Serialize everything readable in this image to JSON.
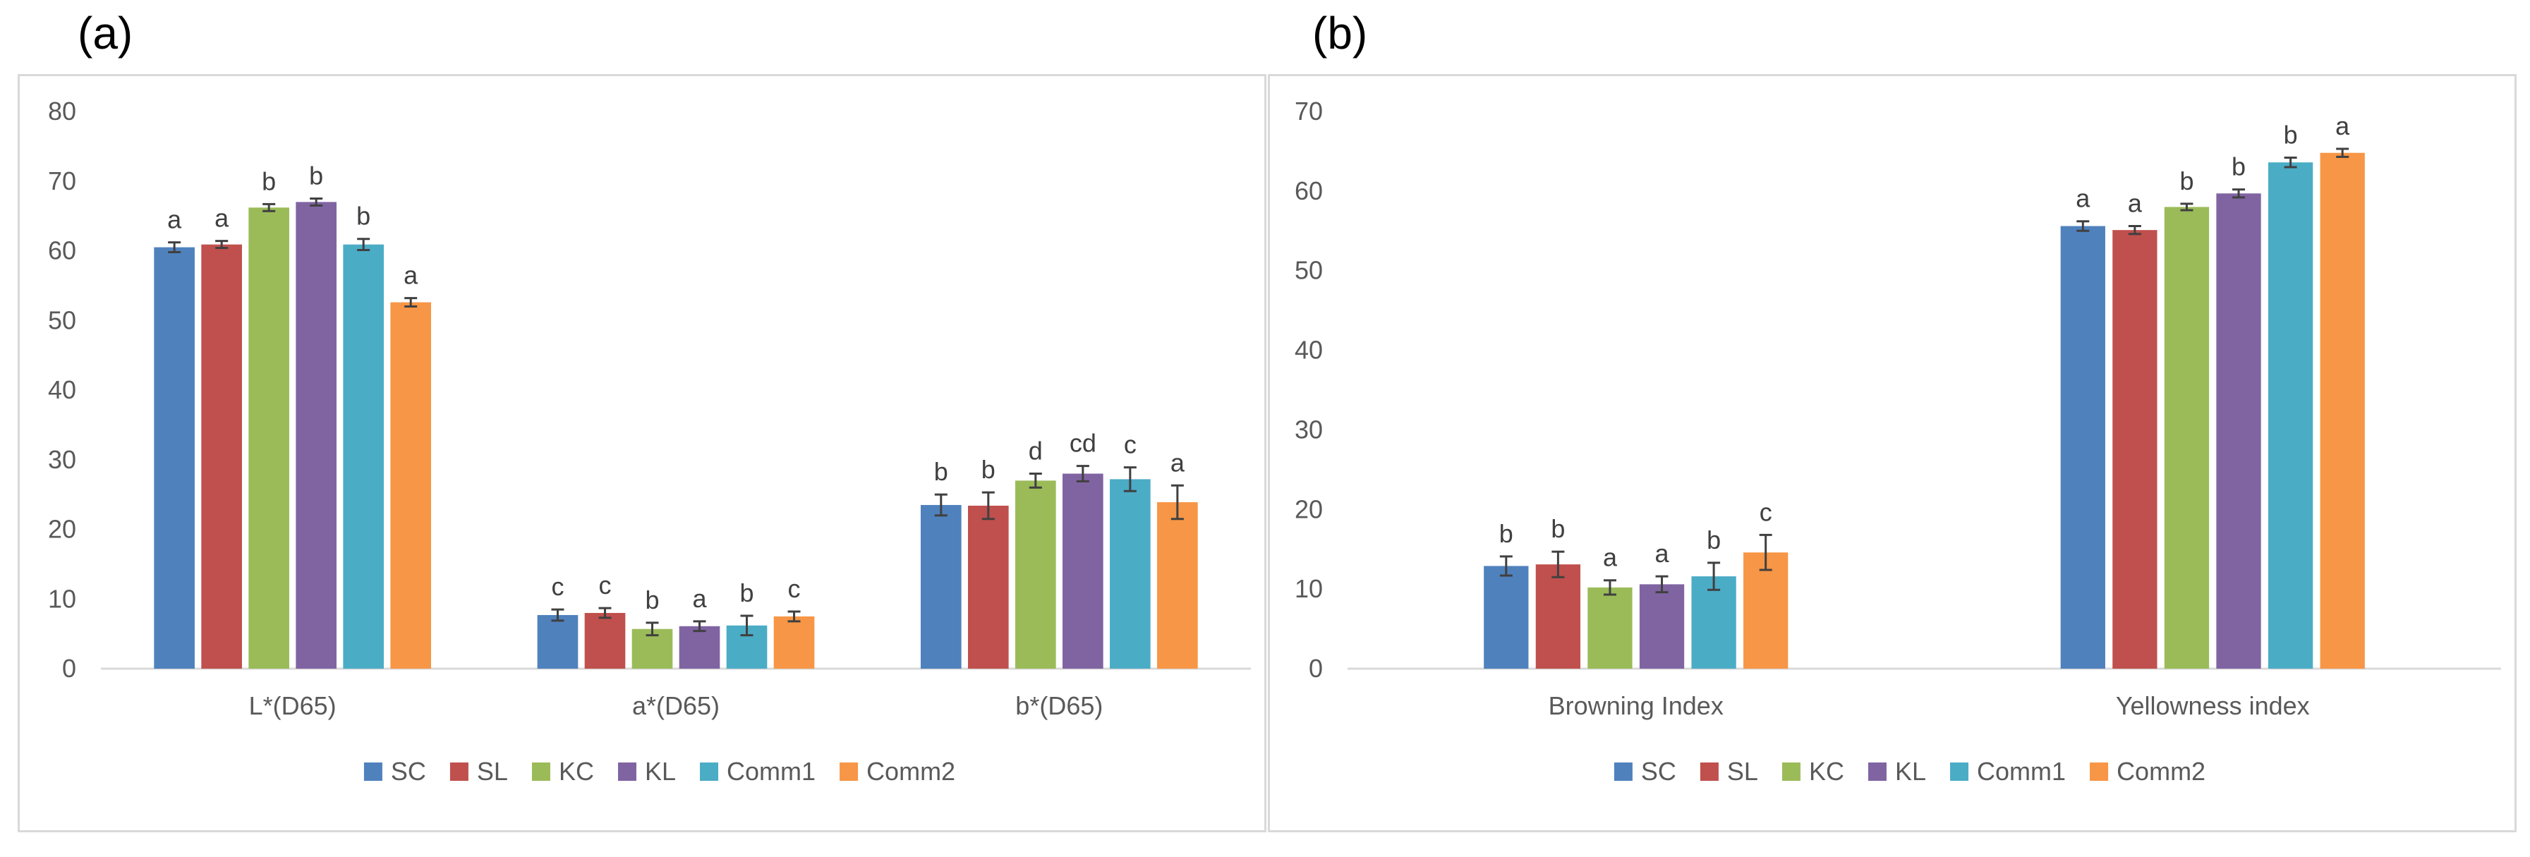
{
  "panels": {
    "a": "(a)",
    "b": "(b)"
  },
  "colors": {
    "SC": "#4f81bd",
    "SL": "#c0504d",
    "KC": "#9bbb59",
    "KL": "#8064a2",
    "Comm1": "#4bacc6",
    "Comm2": "#f79646"
  },
  "chart_data": [
    {
      "type": "bar",
      "panel": "(a)",
      "categories": [
        "L*(D65)",
        "a*(D65)",
        "b*(D65)"
      ],
      "ylim": [
        0,
        80
      ],
      "yticks": [
        0,
        10,
        20,
        30,
        40,
        50,
        60,
        70,
        80
      ],
      "grid": false,
      "legend_position": "bottom",
      "series": [
        {
          "name": "SC",
          "values": [
            60.5,
            7.7,
            23.5
          ],
          "errors": [
            0.7,
            0.8,
            1.5
          ],
          "letters": [
            "a",
            "c",
            "b"
          ]
        },
        {
          "name": "SL",
          "values": [
            60.9,
            8.0,
            23.4
          ],
          "errors": [
            0.5,
            0.7,
            1.9
          ],
          "letters": [
            "a",
            "c",
            "b"
          ]
        },
        {
          "name": "KC",
          "values": [
            66.2,
            5.7,
            27.0
          ],
          "errors": [
            0.5,
            0.9,
            1.0
          ],
          "letters": [
            "b",
            "b",
            "d"
          ]
        },
        {
          "name": "KL",
          "values": [
            67.0,
            6.1,
            28.0
          ],
          "errors": [
            0.5,
            0.7,
            1.1
          ],
          "letters": [
            "b",
            "a",
            "cd"
          ]
        },
        {
          "name": "Comm1",
          "values": [
            60.9,
            6.2,
            27.2
          ],
          "errors": [
            0.8,
            1.4,
            1.7
          ],
          "letters": [
            "b",
            "b",
            "c"
          ]
        },
        {
          "name": "Comm2",
          "values": [
            52.6,
            7.5,
            23.9
          ],
          "errors": [
            0.6,
            0.7,
            2.4
          ],
          "letters": [
            "a",
            "c",
            "a"
          ]
        }
      ]
    },
    {
      "type": "bar",
      "panel": "(b)",
      "categories": [
        "Browning Index",
        "Yellowness index"
      ],
      "ylim": [
        0,
        70
      ],
      "yticks": [
        0,
        10,
        20,
        30,
        40,
        50,
        60,
        70
      ],
      "grid": false,
      "legend_position": "bottom",
      "series": [
        {
          "name": "SC",
          "values": [
            12.9,
            55.6
          ],
          "errors": [
            1.2,
            0.6
          ],
          "letters": [
            "b",
            "a"
          ]
        },
        {
          "name": "SL",
          "values": [
            13.1,
            55.1
          ],
          "errors": [
            1.6,
            0.5
          ],
          "letters": [
            "b",
            "a"
          ]
        },
        {
          "name": "KC",
          "values": [
            10.2,
            58.0
          ],
          "errors": [
            0.9,
            0.4
          ],
          "letters": [
            "a",
            "b"
          ]
        },
        {
          "name": "KL",
          "values": [
            10.6,
            59.7
          ],
          "errors": [
            1.0,
            0.5
          ],
          "letters": [
            "a",
            "b"
          ]
        },
        {
          "name": "Comm1",
          "values": [
            11.6,
            63.6
          ],
          "errors": [
            1.7,
            0.6
          ],
          "letters": [
            "b",
            "b"
          ]
        },
        {
          "name": "Comm2",
          "values": [
            14.6,
            64.8
          ],
          "errors": [
            2.2,
            0.5
          ],
          "letters": [
            "c",
            "a"
          ]
        }
      ]
    }
  ]
}
